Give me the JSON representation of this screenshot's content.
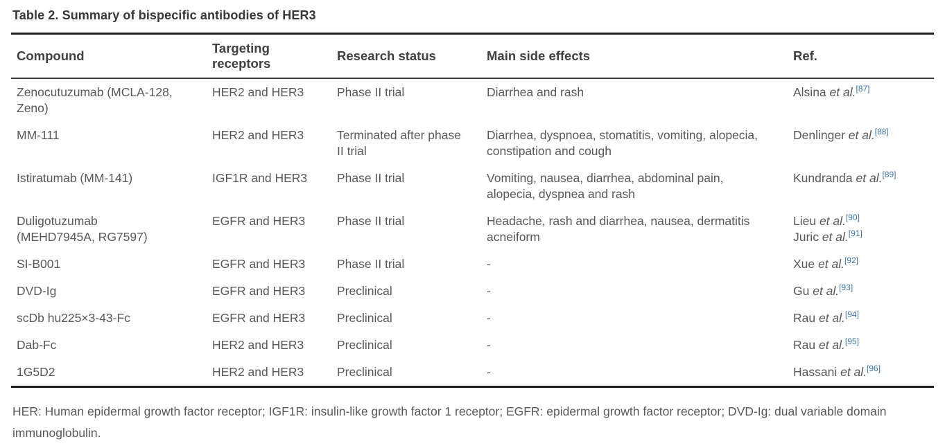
{
  "colors": {
    "title_text": "#3a3637",
    "header_text": "#414042",
    "body_text": "#58595b",
    "citation_link": "#4075ad",
    "rule_heavy": "#1e1c1d",
    "rule_light": "#3b3b3c",
    "background": "#ffffff"
  },
  "table": {
    "title": "Table 2. Summary of bispecific antibodies of HER3",
    "columns": [
      "Compound",
      "Targeting receptors",
      "Research status",
      "Main side effects",
      "Ref."
    ],
    "rows": [
      {
        "compound": "Zenocutuzumab (MCLA-128, Zeno)",
        "receptors": "HER2 and HER3",
        "status": "Phase II trial",
        "side_effects": "Diarrhea and rash",
        "refs": [
          {
            "name": "Alsina",
            "etal": "et al.",
            "cite": "[87]"
          }
        ]
      },
      {
        "compound": "MM-111",
        "receptors": "HER2 and HER3",
        "status": "Terminated after phase II trial",
        "side_effects": "Diarrhea, dyspnoea, stomatitis, vomiting, alopecia, constipation and cough",
        "refs": [
          {
            "name": "Denlinger",
            "etal": "et al.",
            "cite": "[88]"
          }
        ]
      },
      {
        "compound": "Istiratumab (MM-141)",
        "receptors": "IGF1R and HER3",
        "status": "Phase II trial",
        "side_effects": "Vomiting, nausea, diarrhea, abdominal pain, alopecia, dyspnea and rash",
        "refs": [
          {
            "name": "Kundranda",
            "etal": "et al.",
            "cite": "[89]"
          }
        ]
      },
      {
        "compound": "Duligotuzumab (MEHD7945A, RG7597)",
        "receptors": "EGFR and HER3",
        "status": "Phase II trial",
        "side_effects": "Headache, rash and diarrhea, nausea, dermatitis acneiform",
        "refs": [
          {
            "name": "Lieu",
            "etal": "et al.",
            "cite": "[90]"
          },
          {
            "name": "Juric",
            "etal": "et al.",
            "cite": "[91]"
          }
        ]
      },
      {
        "compound": "SI-B001",
        "receptors": "EGFR and HER3",
        "status": "Phase II trial",
        "side_effects": "-",
        "refs": [
          {
            "name": "Xue",
            "etal": "et al.",
            "cite": "[92]"
          }
        ]
      },
      {
        "compound": "DVD-Ig",
        "receptors": "EGFR and HER3",
        "status": "Preclinical",
        "side_effects": "-",
        "refs": [
          {
            "name": "Gu",
            "etal": "et al.",
            "cite": "[93]"
          }
        ]
      },
      {
        "compound": "scDb hu225×3-43-Fc",
        "receptors": "EGFR and HER3",
        "status": "Preclinical",
        "side_effects": "-",
        "refs": [
          {
            "name": "Rau",
            "etal": "et al.",
            "cite": "[94]"
          }
        ]
      },
      {
        "compound": "Dab-Fc",
        "receptors": "HER2 and HER3",
        "status": "Preclinical",
        "side_effects": "-",
        "refs": [
          {
            "name": "Rau",
            "etal": "et al.",
            "cite": "[95]"
          }
        ]
      },
      {
        "compound": "1G5D2",
        "receptors": "HER2 and HER3",
        "status": "Preclinical",
        "side_effects": "-",
        "refs": [
          {
            "name": "Hassani",
            "etal": "et al.",
            "cite": "[96]"
          }
        ]
      }
    ],
    "footnote": "HER: Human epidermal growth factor receptor; IGF1R: insulin-like growth factor 1 receptor; EGFR: epidermal growth factor receptor; DVD-Ig: dual variable domain immunoglobulin."
  }
}
